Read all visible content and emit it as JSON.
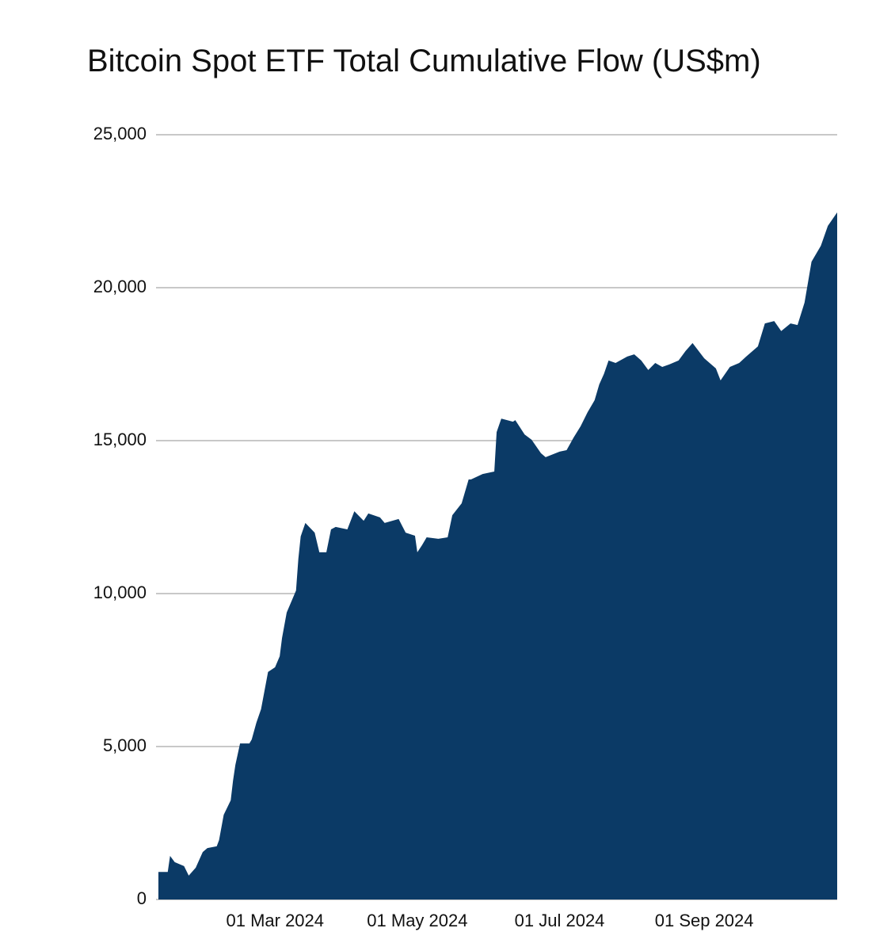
{
  "chart_data": {
    "type": "area",
    "title": "Bitcoin Spot ETF Total Cumulative Flow (US$m)",
    "color": "#0b3a66",
    "grid": true,
    "x": [
      "2024-01-11",
      "2024-01-15",
      "2024-01-16",
      "2024-01-18",
      "2024-01-22",
      "2024-01-24",
      "2024-01-27",
      "2024-01-30",
      "2024-02-01",
      "2024-02-05",
      "2024-02-06",
      "2024-02-08",
      "2024-02-11",
      "2024-02-12",
      "2024-02-13",
      "2024-02-15",
      "2024-02-19",
      "2024-02-20",
      "2024-02-22",
      "2024-02-24",
      "2024-02-27",
      "2024-03-01",
      "2024-03-03",
      "2024-03-04",
      "2024-03-06",
      "2024-03-10",
      "2024-03-11",
      "2024-03-12",
      "2024-03-14",
      "2024-03-18",
      "2024-03-20",
      "2024-03-23",
      "2024-03-25",
      "2024-03-27",
      "2024-04-01",
      "2024-04-04",
      "2024-04-08",
      "2024-04-10",
      "2024-04-15",
      "2024-04-17",
      "2024-04-23",
      "2024-04-26",
      "2024-04-30",
      "2024-05-01",
      "2024-05-03",
      "2024-05-05",
      "2024-05-10",
      "2024-05-14",
      "2024-05-16",
      "2024-05-20",
      "2024-05-23",
      "2024-05-24",
      "2024-05-29",
      "2024-06-03",
      "2024-06-04",
      "2024-06-06",
      "2024-06-11",
      "2024-06-12",
      "2024-06-16",
      "2024-06-19",
      "2024-06-23",
      "2024-06-25",
      "2024-07-01",
      "2024-07-04",
      "2024-07-07",
      "2024-07-10",
      "2024-07-13",
      "2024-07-16",
      "2024-07-18",
      "2024-07-20",
      "2024-07-22",
      "2024-07-25",
      "2024-07-30",
      "2024-08-02",
      "2024-08-05",
      "2024-08-08",
      "2024-08-11",
      "2024-08-14",
      "2024-08-17",
      "2024-08-21",
      "2024-08-24",
      "2024-08-27",
      "2024-09-01",
      "2024-09-06",
      "2024-09-08",
      "2024-09-12",
      "2024-09-16",
      "2024-09-19",
      "2024-09-24",
      "2024-09-27",
      "2024-10-01",
      "2024-10-04",
      "2024-10-08",
      "2024-10-11",
      "2024-10-14",
      "2024-10-17",
      "2024-10-21",
      "2024-10-24",
      "2024-10-28"
    ],
    "values": [
      900,
      900,
      1425,
      1220,
      1090,
      780,
      1040,
      1550,
      1680,
      1740,
      1940,
      2770,
      3240,
      3890,
      4400,
      5100,
      5100,
      5230,
      5780,
      6220,
      7440,
      7590,
      7950,
      8550,
      9380,
      10100,
      11140,
      11870,
      12310,
      11990,
      11350,
      11350,
      12100,
      12180,
      12100,
      12690,
      12380,
      12620,
      12490,
      12310,
      12440,
      11990,
      11890,
      11350,
      11580,
      11840,
      11790,
      11840,
      12560,
      12950,
      13730,
      13730,
      13910,
      13990,
      15280,
      15720,
      15620,
      15670,
      15200,
      15030,
      14590,
      14460,
      14640,
      14690,
      15100,
      15470,
      15930,
      16320,
      16840,
      17180,
      17620,
      17540,
      17750,
      17820,
      17620,
      17310,
      17540,
      17410,
      17490,
      17620,
      17930,
      18190,
      17690,
      17360,
      16970,
      17410,
      17540,
      17750,
      18080,
      18830,
      18910,
      18580,
      18830,
      18780,
      19510,
      20850,
      21370,
      22020,
      22460
    ],
    "xlim": [
      "2024-01-11",
      "2024-10-28"
    ],
    "xticks": [
      {
        "value": "2024-03-01",
        "label": "01 Mar 2024"
      },
      {
        "value": "2024-05-01",
        "label": "01 May 2024"
      },
      {
        "value": "2024-07-01",
        "label": "01 Jul 2024"
      },
      {
        "value": "2024-09-01",
        "label": "01 Sep 2024"
      }
    ],
    "ylim": [
      0,
      25000
    ],
    "yticks": [
      0,
      {
        "value": 5000,
        "label": "5,000"
      },
      {
        "value": 10000,
        "label": "10,000"
      },
      {
        "value": 15000,
        "label": "15,000"
      },
      {
        "value": 20000,
        "label": "20,000"
      },
      {
        "value": 25000,
        "label": "25,000"
      }
    ]
  }
}
